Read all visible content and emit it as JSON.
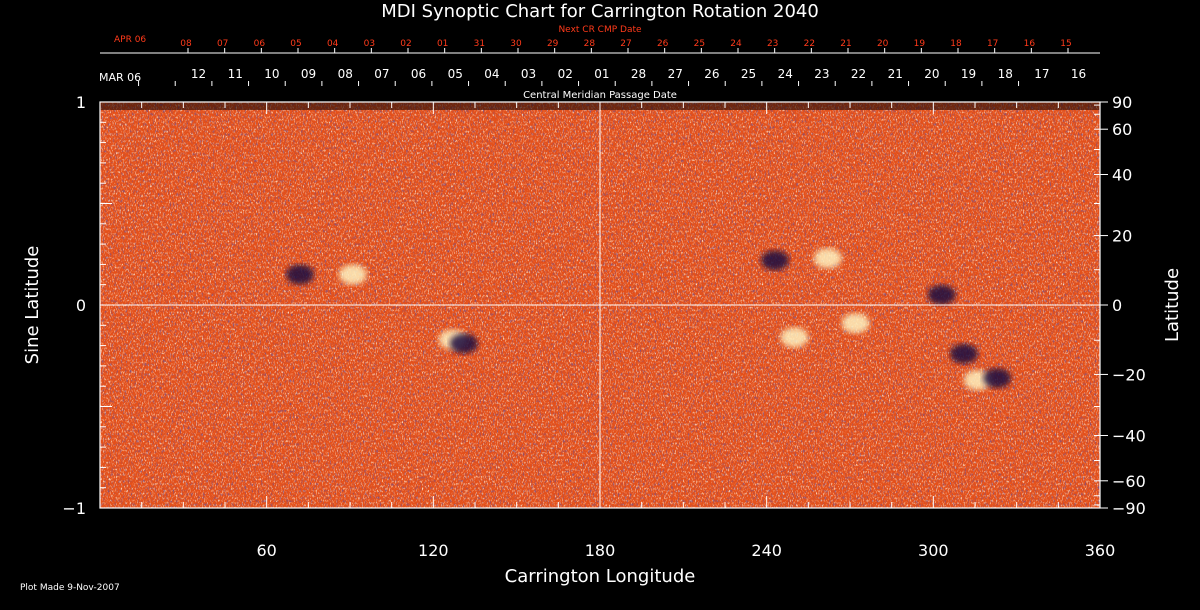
{
  "chart_data": {
    "type": "heatmap",
    "title": "MDI Synoptic Chart for Carrington Rotation 2040",
    "xlabel": "Carrington Longitude",
    "ylabel_left": "Sine Latitude",
    "ylabel_right": "Latitude",
    "xlim": [
      0,
      360
    ],
    "ylim": [
      -1,
      1
    ],
    "x_ticks": [
      60,
      120,
      180,
      240,
      300,
      360
    ],
    "y_left_ticks": [
      {
        "v": 1,
        "label": "1"
      },
      {
        "v": 0,
        "label": "0"
      },
      {
        "v": -1,
        "label": "−1"
      }
    ],
    "y_right_ticks": [
      {
        "deg": 90,
        "label": "90"
      },
      {
        "deg": 60,
        "label": "60"
      },
      {
        "deg": 40,
        "label": "40"
      },
      {
        "deg": 20,
        "label": "20"
      },
      {
        "deg": 0,
        "label": "0"
      },
      {
        "deg": -20,
        "label": "−20"
      },
      {
        "deg": -40,
        "label": "−40"
      },
      {
        "deg": -60,
        "label": "−60"
      },
      {
        "deg": -90,
        "label": "−90"
      }
    ],
    "cmp_axis": {
      "label": "Central Meridian Passage Date",
      "start_label": "MAR 06",
      "days": [
        {
          "lon": 10,
          "label": "12"
        },
        {
          "lon": 23.2,
          "label": "11"
        },
        {
          "lon": 36.4,
          "label": "10"
        },
        {
          "lon": 49.6,
          "label": "09"
        },
        {
          "lon": 62.8,
          "label": "08"
        },
        {
          "lon": 76,
          "label": "07"
        },
        {
          "lon": 89.2,
          "label": "06"
        },
        {
          "lon": 102.4,
          "label": "05"
        },
        {
          "lon": 115.6,
          "label": "04"
        },
        {
          "lon": 128.8,
          "label": "03"
        },
        {
          "lon": 142,
          "label": "02"
        },
        {
          "lon": 155.2,
          "label": "01"
        },
        {
          "lon": 168.4,
          "label": "28"
        },
        {
          "lon": 181.6,
          "label": "27"
        },
        {
          "lon": 194.8,
          "label": "26"
        },
        {
          "lon": 208,
          "label": "25"
        },
        {
          "lon": 221.2,
          "label": "24"
        },
        {
          "lon": 234.4,
          "label": "23"
        },
        {
          "lon": 247.6,
          "label": "22"
        },
        {
          "lon": 260.8,
          "label": "21"
        },
        {
          "lon": 274,
          "label": "20"
        },
        {
          "lon": 287.2,
          "label": "19"
        },
        {
          "lon": 300.4,
          "label": "18"
        },
        {
          "lon": 313.6,
          "label": "17"
        },
        {
          "lon": 326.8,
          "label": "16"
        }
      ]
    },
    "next_cr_axis": {
      "label": "Next CR CMP Date",
      "start_label": "APR 06",
      "days": [
        {
          "lon": 0,
          "label": "08"
        },
        {
          "lon": 13.2,
          "label": "07"
        },
        {
          "lon": 26.4,
          "label": "06"
        },
        {
          "lon": 39.6,
          "label": "05"
        },
        {
          "lon": 52.8,
          "label": "04"
        },
        {
          "lon": 66,
          "label": "03"
        },
        {
          "lon": 79.2,
          "label": "02"
        },
        {
          "lon": 92.4,
          "label": "01"
        },
        {
          "lon": 105.6,
          "label": "31"
        },
        {
          "lon": 118.8,
          "label": "30"
        },
        {
          "lon": 132,
          "label": "29"
        },
        {
          "lon": 145.2,
          "label": "28"
        },
        {
          "lon": 158.4,
          "label": "27"
        },
        {
          "lon": 171.6,
          "label": "26"
        },
        {
          "lon": 184.8,
          "label": "25"
        },
        {
          "lon": 198,
          "label": "24"
        },
        {
          "lon": 211.2,
          "label": "23"
        },
        {
          "lon": 224.4,
          "label": "22"
        },
        {
          "lon": 237.6,
          "label": "21"
        },
        {
          "lon": 250.8,
          "label": "20"
        },
        {
          "lon": 264,
          "label": "19"
        },
        {
          "lon": 277.2,
          "label": "18"
        },
        {
          "lon": 290.4,
          "label": "17"
        },
        {
          "lon": 303.6,
          "label": "16"
        },
        {
          "lon": 316.8,
          "label": "15"
        }
      ]
    },
    "footer": "Plot Made  9-Nov-2007",
    "grid": "crosshair",
    "colors": {
      "background": "#000000",
      "axis": "#ffffff",
      "next_cr": "#ff3a1a",
      "field_base": "#e4501a",
      "negative_polarity": "#1a1040",
      "positive_polarity": "#fff2c0"
    },
    "active_regions": [
      {
        "lon": 127,
        "sinlat": -0.17,
        "polarity": "positive"
      },
      {
        "lon": 131,
        "sinlat": -0.19,
        "polarity": "negative"
      },
      {
        "lon": 243,
        "sinlat": 0.22,
        "polarity": "negative"
      },
      {
        "lon": 262,
        "sinlat": 0.23,
        "polarity": "positive"
      },
      {
        "lon": 250,
        "sinlat": -0.16,
        "polarity": "positive"
      },
      {
        "lon": 272,
        "sinlat": -0.09,
        "polarity": "positive"
      },
      {
        "lon": 316,
        "sinlat": -0.37,
        "polarity": "positive"
      },
      {
        "lon": 323,
        "sinlat": -0.36,
        "polarity": "negative"
      },
      {
        "lon": 311,
        "sinlat": -0.24,
        "polarity": "negative"
      },
      {
        "lon": 303,
        "sinlat": 0.05,
        "polarity": "negative"
      },
      {
        "lon": 72,
        "sinlat": 0.15,
        "polarity": "negative"
      },
      {
        "lon": 91,
        "sinlat": 0.15,
        "polarity": "positive"
      }
    ]
  }
}
